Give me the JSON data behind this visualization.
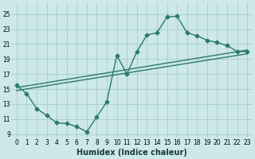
{
  "bg_color": "#cce8e8",
  "grid_color": "#aacccc",
  "line_color": "#2a7a6a",
  "line_width": 1.0,
  "marker": "D",
  "marker_size": 2.5,
  "xlabel": "Humidex (Indice chaleur)",
  "xlabel_fontsize": 7.0,
  "tick_fontsize": 5.5,
  "xlim": [
    -0.5,
    23.5
  ],
  "ylim": [
    8.5,
    26.5
  ],
  "yticks": [
    9,
    11,
    13,
    15,
    17,
    19,
    21,
    23,
    25
  ],
  "xticks": [
    0,
    1,
    2,
    3,
    4,
    5,
    6,
    7,
    8,
    9,
    10,
    11,
    12,
    13,
    14,
    15,
    16,
    17,
    18,
    19,
    20,
    21,
    22,
    23
  ],
  "line1_x": [
    0,
    1,
    2,
    3,
    4,
    5,
    6,
    7,
    8,
    9,
    10,
    11,
    12,
    13,
    14,
    15,
    16,
    17,
    18,
    19,
    20,
    21,
    22,
    23
  ],
  "line1_y": [
    15.5,
    14.4,
    12.4,
    11.5,
    10.5,
    10.4,
    10.0,
    9.3,
    11.3,
    13.3,
    19.5,
    17.0,
    20.0,
    22.2,
    22.5,
    24.6,
    24.7,
    22.5,
    22.1,
    21.5,
    21.2,
    20.8,
    20.0,
    20.0
  ],
  "line2_x": [
    0,
    23
  ],
  "line2_y": [
    15.2,
    20.2
  ],
  "line3_x": [
    0,
    23
  ],
  "line3_y": [
    14.8,
    19.7
  ],
  "figwidth": 3.2,
  "figheight": 2.0,
  "dpi": 100
}
